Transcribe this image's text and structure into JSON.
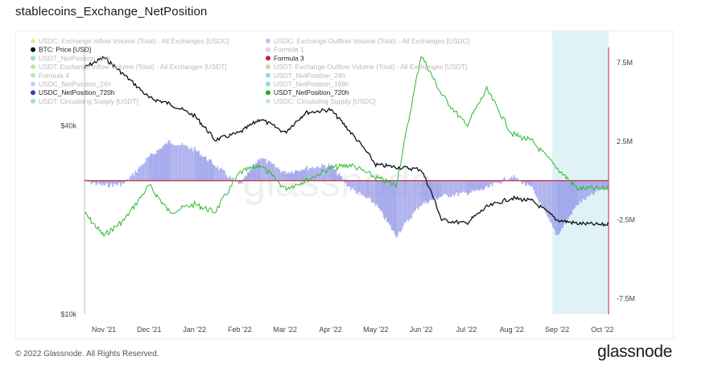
{
  "title": "stablecoins_Exchange_NetPosition",
  "footer": {
    "copyright": "© 2022 Glassnode. All Rights Reserved.",
    "logo": "glassnode"
  },
  "watermark": "glassnode",
  "legend": [
    {
      "label": "USDC: Exchange Inflow Volume (Total) - All Exchanges [USDC]",
      "color": "#e3d23a",
      "faded": true
    },
    {
      "label": "USDC: Exchange Outflow Volume (Total) - All Exchanges [USDC]",
      "color": "#c07be0",
      "faded": true
    },
    {
      "label": "BTC: Price [USD]",
      "color": "#111111",
      "faded": false
    },
    {
      "label": "Formula 1",
      "color": "#d8a0d0",
      "faded": true
    },
    {
      "label": "USDT_NetPosition_24h",
      "color": "#3ed0a0",
      "faded": true
    },
    {
      "label": "Formula 3",
      "color": "#c0282d",
      "faded": false
    },
    {
      "label": "USDT: Exchange Inflow Volume (Total) - All Exchanges [USDT]",
      "color": "#9bd04a",
      "faded": true
    },
    {
      "label": "USDT: Exchange Outflow Volume (Total) - All Exchanges [USDT]",
      "color": "#c8a060",
      "faded": true
    },
    {
      "label": "Formula 4",
      "color": "#7ad67a",
      "faded": true
    },
    {
      "label": "USDT_NetPosition_24h",
      "color": "#3fb8d8",
      "faded": true
    },
    {
      "label": "USDC_NetPosition_24h",
      "color": "#9aa0e8",
      "faded": true
    },
    {
      "label": "USDT_NetPosition_168h",
      "color": "#30b8d0",
      "faded": true
    },
    {
      "label": "USDC_NetPosition_720h",
      "color": "#2f3fbf",
      "faded": false
    },
    {
      "label": "USDT_NetPosition_720h",
      "color": "#26a826",
      "faded": false
    },
    {
      "label": "USDT: Circulating Supply [USDT]",
      "color": "#52c4c4",
      "faded": true
    },
    {
      "label": "USDC: Circulating Supply [USDC]",
      "color": "#8bd0d8",
      "faded": true
    }
  ],
  "colors": {
    "btc": "#111111",
    "usdt": "#2db82d",
    "usdc_fill": "#8f94e6",
    "zero_line": "#c4283a",
    "shade": "#dff3f7",
    "axis_line": "#c4283a"
  },
  "chart_data": {
    "type": "line",
    "x_ticks": [
      "Nov '21",
      "Dec '21",
      "Jan '22",
      "Feb '22",
      "Mar '22",
      "Apr '22",
      "May '22",
      "Jun '22",
      "Jul '22",
      "Aug '22",
      "Sep '22",
      "Oct '22"
    ],
    "y_left_ticks": [
      "$40k",
      "$10k"
    ],
    "y_right_ticks": [
      "7.5M",
      "2.5M",
      "-2.5M",
      "-7.5M"
    ],
    "y_right_range": [
      -8.5,
      9.5
    ],
    "y_left_scale": "log",
    "y_left_range": [
      10000,
      80000
    ],
    "shaded_region": [
      "Sep '22",
      "Oct '22"
    ],
    "series": [
      {
        "name": "BTC: Price [USD]",
        "x": [
          "Oct '21",
          "Nov '21",
          "Nov '21",
          "Dec '21",
          "Dec '21",
          "Jan '22",
          "Jan '22",
          "Feb '22",
          "Feb '22",
          "Mar '22",
          "Mar '22",
          "Apr '22",
          "Apr '22",
          "May '22",
          "May '22",
          "Jun '22",
          "Jun '22",
          "Jul '22",
          "Jul '22",
          "Aug '22",
          "Aug '22",
          "Sep '22",
          "Sep '22",
          "Oct '22",
          "Oct '22"
        ],
        "values": [
          61000,
          66000,
          58000,
          49000,
          47000,
          43000,
          36000,
          38000,
          42000,
          38000,
          44000,
          45000,
          38000,
          30000,
          29500,
          29000,
          20000,
          19500,
          22000,
          23500,
          23000,
          20000,
          19500,
          19300,
          19600
        ]
      },
      {
        "name": "USDT_NetPosition_720h",
        "x": [
          "Oct '21",
          "Nov '21",
          "Nov '21",
          "Dec '21",
          "Dec '21",
          "Jan '22",
          "Jan '22",
          "Feb '22",
          "Feb '22",
          "Mar '22",
          "Mar '22",
          "Apr '22",
          "Apr '22",
          "May '22",
          "May '22",
          "Jun '22",
          "Jun '22",
          "Jul '22",
          "Jul '22",
          "Aug '22",
          "Aug '22",
          "Sep '22",
          "Sep '22",
          "Oct '22",
          "Oct '22"
        ],
        "values": [
          -2.0,
          -3.5,
          -2.5,
          -0.3,
          -2.0,
          -1.5,
          -2.0,
          0.5,
          1.0,
          -0.5,
          0.0,
          0.8,
          1.0,
          0.2,
          -0.3,
          8.0,
          5.5,
          3.5,
          5.8,
          3.0,
          2.5,
          0.8,
          -0.5,
          -0.5,
          -0.3
        ]
      },
      {
        "name": "USDC_NetPosition_720h",
        "x": [
          "Oct '21",
          "Nov '21",
          "Nov '21",
          "Dec '21",
          "Dec '21",
          "Jan '22",
          "Jan '22",
          "Feb '22",
          "Feb '22",
          "Mar '22",
          "Mar '22",
          "Apr '22",
          "Apr '22",
          "May '22",
          "May '22",
          "Jun '22",
          "Jun '22",
          "Jul '22",
          "Jul '22",
          "Aug '22",
          "Aug '22",
          "Sep '22",
          "Sep '22",
          "Oct '22",
          "Oct '22"
        ],
        "values": [
          0.0,
          -0.3,
          -0.2,
          1.5,
          2.5,
          2.0,
          1.0,
          -0.3,
          1.5,
          0.5,
          0.8,
          1.0,
          -0.5,
          -1.5,
          -3.5,
          -1.5,
          -1.0,
          -0.8,
          -0.5,
          0.3,
          -0.5,
          -3.5,
          -1.5,
          -0.5,
          -0.3
        ]
      }
    ]
  }
}
